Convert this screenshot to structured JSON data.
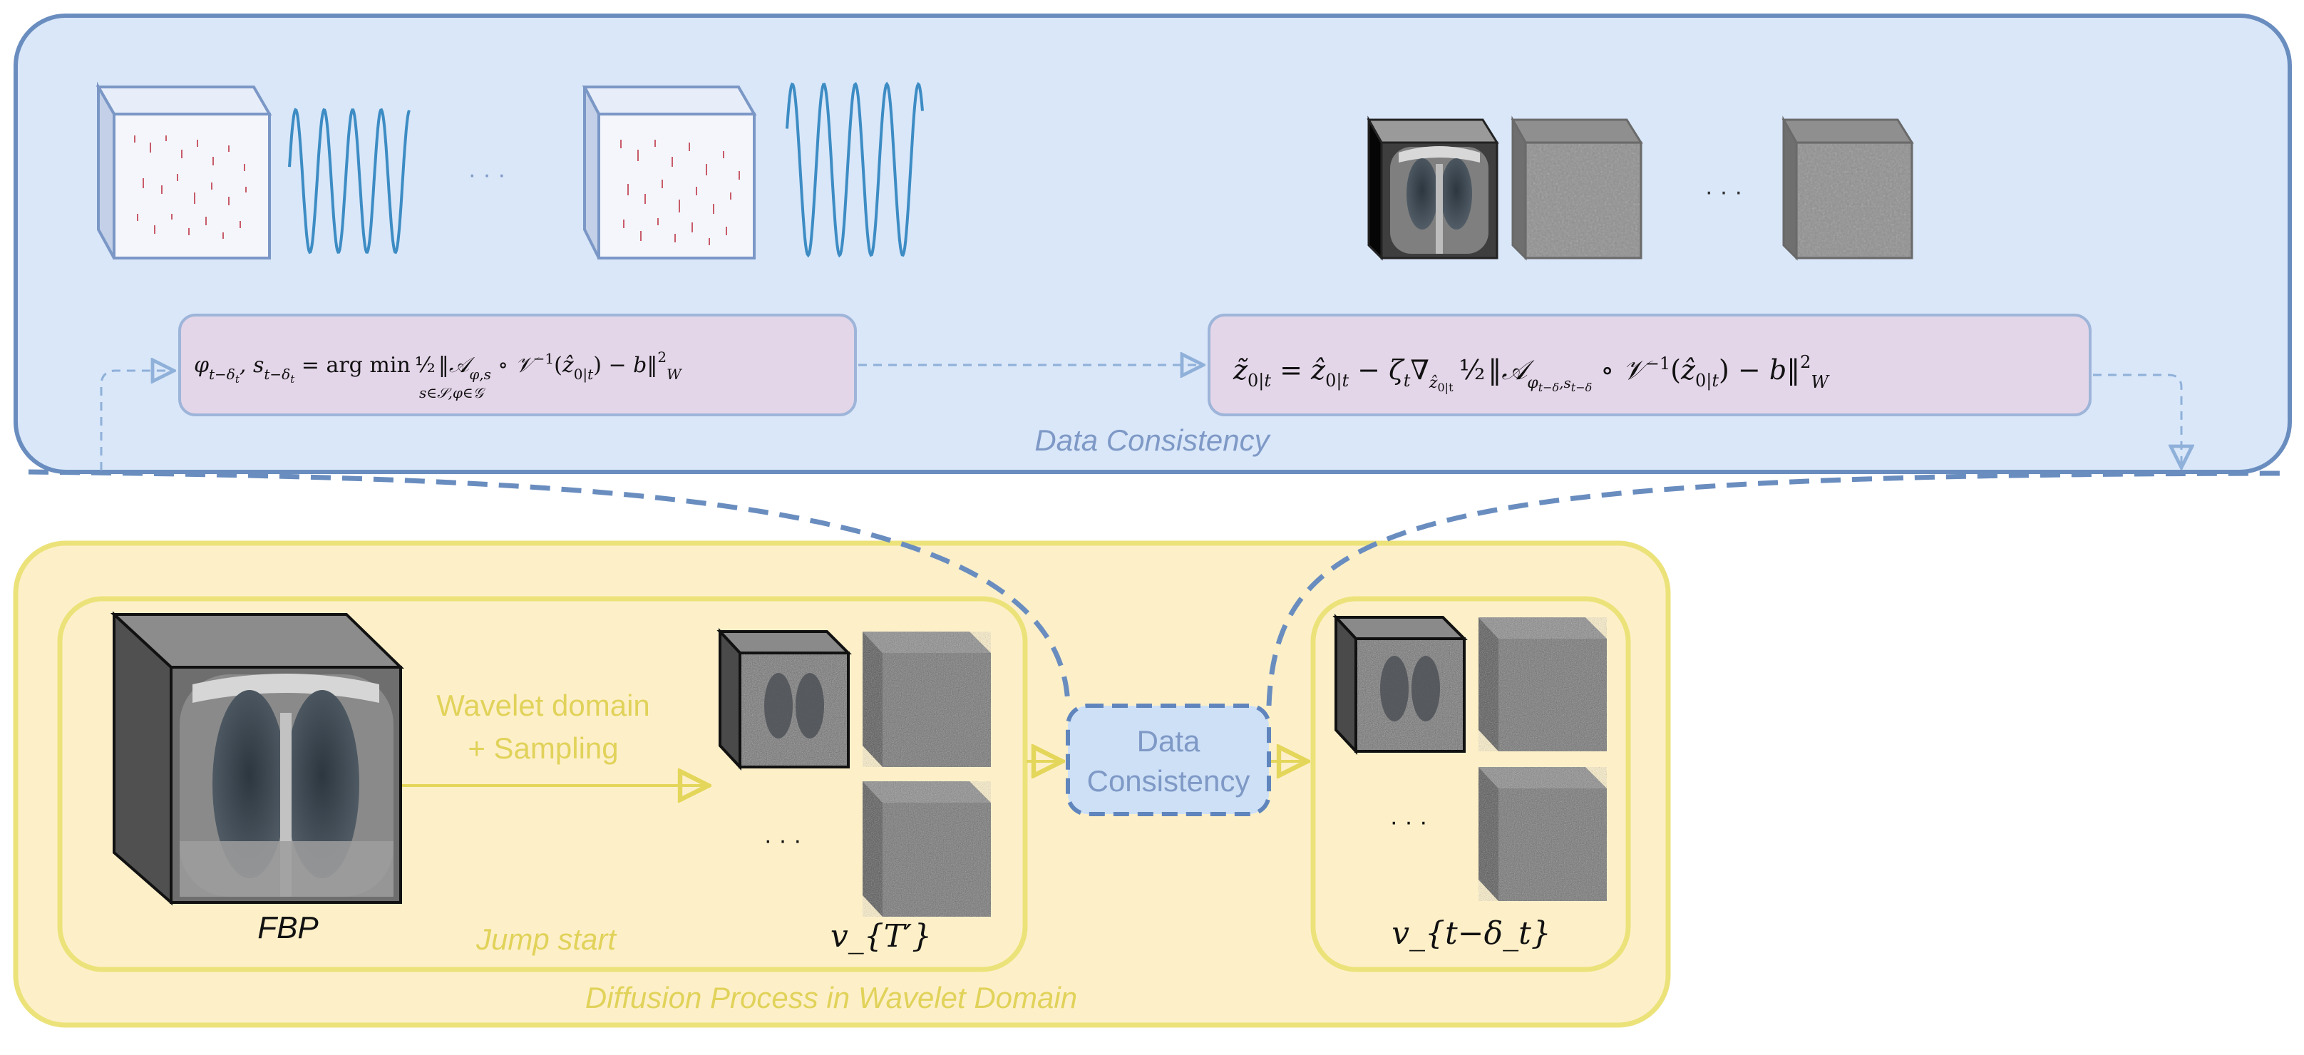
{
  "colors": {
    "blue_panel_fill": "#d9e7f9",
    "blue_panel_stroke": "#6a8dbf",
    "yellow_panel_fill": "#fdf0c9",
    "yellow_panel_stroke": "#ece27a",
    "formula_box_fill": "#e4d6e9",
    "formula_box_stroke": "#9eb5d9",
    "label_blue": "#7f99c6",
    "label_yellow": "#e1d25a",
    "wave_blue": "#3d8cc4",
    "dc_box_fill": "#cde0f6",
    "dc_box_stroke": "#6085bd"
  },
  "top_panel": {
    "title": "Data Consistency",
    "ellipsis_left": "· · ·",
    "ellipsis_right": "· · ·",
    "formula_left": {
      "lhs": "φ_{t−δ_t}, s_{t−δ_t} = arg min_{s∈S, φ∈G} ½ ‖A_{φ,s} ∘ V⁻¹(ẑ_{0|t}) − b‖²_W"
    },
    "formula_right": {
      "lhs": "z̃_{0|t} = ẑ_{0|t} − ζ_t ∇_{ẑ_{0|t}} ½ ‖A_{φ_{t−δ_t}, s_{t−δ_t}} ∘ V⁻¹(ẑ_{0|t}) − b‖²_W"
    }
  },
  "bottom_panel": {
    "title": "Diffusion Process in Wavelet Domain",
    "jump_start": {
      "title": "Jump start",
      "fbp_label": "FBP",
      "arrow_label_line1": "Wavelet domain",
      "arrow_label_line2": "+ Sampling",
      "ellipsis": "· · ·",
      "var_label": "v_{T′}"
    },
    "dc_box": {
      "line1": "Data",
      "line2": "Consistency"
    },
    "result": {
      "ellipsis": "· · ·",
      "var_label": "v_{t−δ_t}"
    }
  }
}
